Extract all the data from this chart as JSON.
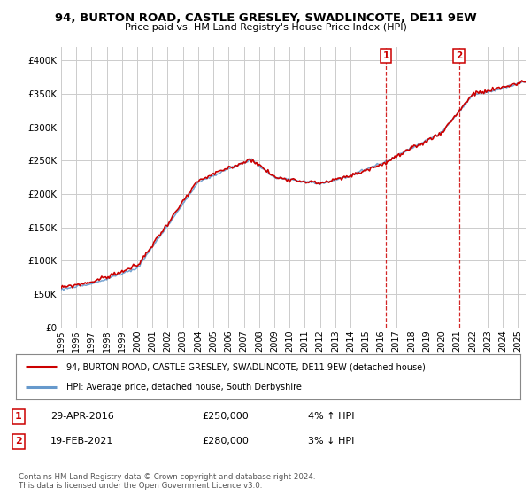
{
  "title": "94, BURTON ROAD, CASTLE GRESLEY, SWADLINCOTE, DE11 9EW",
  "subtitle": "Price paid vs. HM Land Registry's House Price Index (HPI)",
  "legend_line1": "94, BURTON ROAD, CASTLE GRESLEY, SWADLINCOTE, DE11 9EW (detached house)",
  "legend_line2": "HPI: Average price, detached house, South Derbyshire",
  "annotation1_num": "1",
  "annotation1_date": "29-APR-2016",
  "annotation1_price": "£250,000",
  "annotation1_hpi": "4% ↑ HPI",
  "annotation2_num": "2",
  "annotation2_date": "19-FEB-2021",
  "annotation2_price": "£280,000",
  "annotation2_hpi": "3% ↓ HPI",
  "footer": "Contains HM Land Registry data © Crown copyright and database right 2024.\nThis data is licensed under the Open Government Licence v3.0.",
  "line_color_red": "#cc0000",
  "line_color_blue": "#6699cc",
  "vline_color": "#cc0000",
  "annotation_box_color": "#cc0000",
  "background_color": "#ffffff",
  "grid_color": "#cccccc",
  "ylim": [
    0,
    420000
  ],
  "yticks": [
    0,
    50000,
    100000,
    150000,
    200000,
    250000,
    300000,
    350000,
    400000
  ],
  "xlim_start": 1995.0,
  "xlim_end": 2025.5,
  "vline1_x": 2016.33,
  "vline2_x": 2021.12
}
